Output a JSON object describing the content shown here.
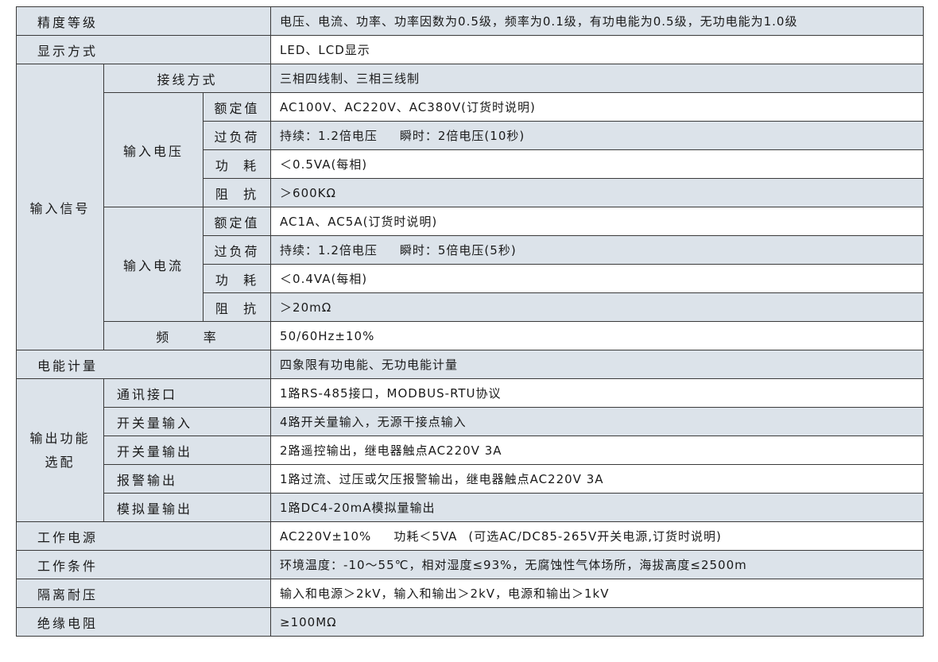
{
  "rows": {
    "accuracy": {
      "label": "精度等级",
      "value": "电压、电流、功率、功率因数为0.5级，频率为0.1级，有功电能为0.5级，无功电能为1.0级"
    },
    "display": {
      "label": "显示方式",
      "value": "LED、LCD显示"
    },
    "input_signal": {
      "label": "输入信号",
      "wiring": {
        "label": "接线方式",
        "value": "三相四线制、三相三线制"
      },
      "voltage": {
        "label": "输入电压",
        "rated": {
          "label": "额定值",
          "value": "AC100V、AC220V、AC380V(订货时说明)"
        },
        "overload": {
          "label": "过负荷",
          "value_a": "持续：1.2倍电压",
          "value_b": "瞬时：2倍电压(10秒)"
        },
        "power": {
          "label": "功  耗",
          "value": "＜0.5VA(每相)"
        },
        "impedance": {
          "label": "阻  抗",
          "value": "＞600KΩ"
        }
      },
      "current": {
        "label": "输入电流",
        "rated": {
          "label": "额定值",
          "value": "AC1A、AC5A(订货时说明)"
        },
        "overload": {
          "label": "过负荷",
          "value_a": "持续：1.2倍电压",
          "value_b": "瞬时：5倍电压(5秒)"
        },
        "power": {
          "label": "功  耗",
          "value": "＜0.4VA(每相)"
        },
        "impedance": {
          "label": "阻  抗",
          "value": "＞20mΩ"
        }
      },
      "frequency": {
        "label": "频     率",
        "value": "50/60Hz±10%"
      }
    },
    "energy": {
      "label": "电能计量",
      "value": "四象限有功电能、无功电能计量"
    },
    "output": {
      "label_1": "输出功能",
      "label_2": "选配",
      "comm": {
        "label": "通讯接口",
        "value": "1路RS-485接口，MODBUS-RTU协议"
      },
      "di": {
        "label": "开关量输入",
        "value": "4路开关量输入，无源干接点输入"
      },
      "do": {
        "label": "开关量输出",
        "value": "2路遥控输出，继电器触点AC220V 3A"
      },
      "alarm": {
        "label": "报警输出",
        "value": "1路过流、过压或欠压报警输出，继电器触点AC220V 3A"
      },
      "analog": {
        "label": "模拟量输出",
        "value": "1路DC4-20mA模拟量输出"
      }
    },
    "power_supply": {
      "label": "工作电源",
      "value_a": "AC220V±10%",
      "value_b": "功耗＜5VA",
      "value_c": "(可选AC/DC85-265V开关电源,订货时说明)"
    },
    "conditions": {
      "label": "工作条件",
      "value": "环境温度：-10～55℃，相对湿度≤93%，无腐蚀性气体场所，海拔高度≤2500m"
    },
    "isolation": {
      "label": "隔离耐压",
      "value": "输入和电源＞2kV，输入和输出＞2kV，电源和输出＞1kV"
    },
    "insulation": {
      "label": "绝缘电阻",
      "value": "≥100MΩ"
    }
  }
}
